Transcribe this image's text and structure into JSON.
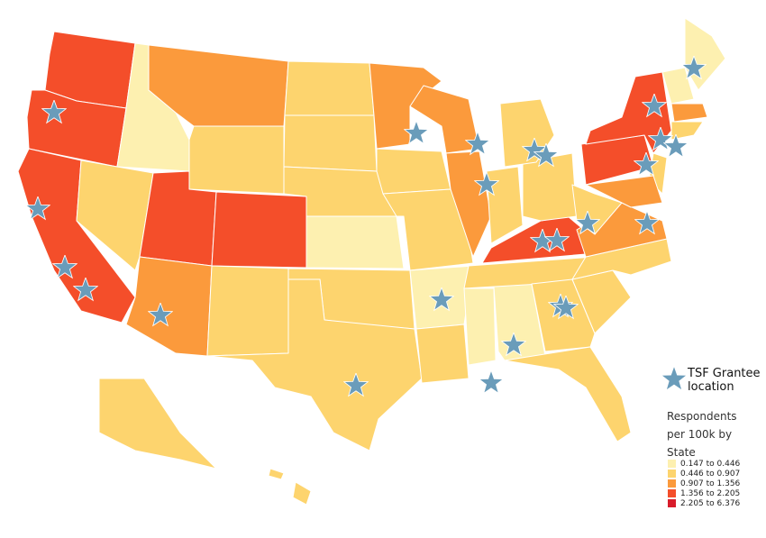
{
  "legend": {
    "marker_label": "TSF Grantee location",
    "title": "Respondents per 100k by State",
    "bins": [
      {
        "label": "0.147 to 0.446",
        "color": "#fdf0b0"
      },
      {
        "label": "0.446 to 0.907",
        "color": "#fdd46e"
      },
      {
        "label": "0.907 to 1.356",
        "color": "#fb9a3c"
      },
      {
        "label": "1.356 to 2.205",
        "color": "#f44e2a"
      },
      {
        "label": "2.205 to 6.376",
        "color": "#d81c2b"
      }
    ]
  }
}
